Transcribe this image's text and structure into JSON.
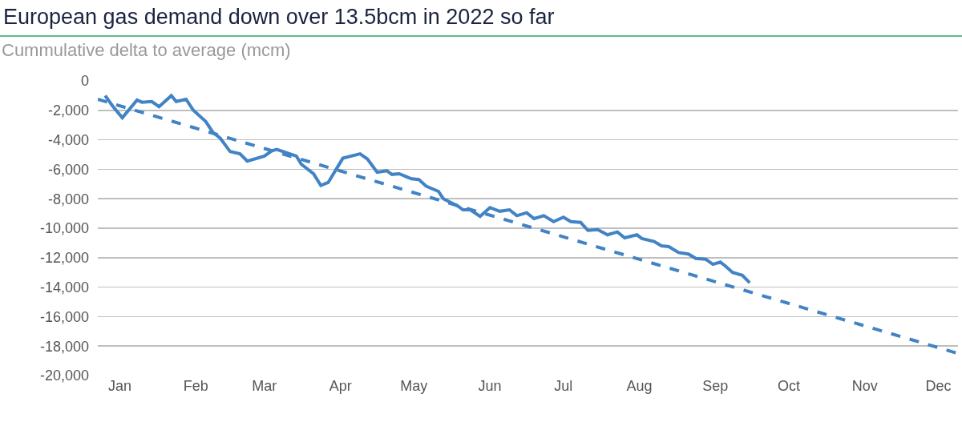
{
  "chart_data": {
    "type": "line",
    "title": "European gas demand down over 13.5bcm in 2022 so far",
    "subtitle": "Cummulative delta to average (mcm)",
    "xlim": [
      "2022-01-06",
      "2022-12-23"
    ],
    "xticks": [
      {
        "value": "2022-01-15",
        "label": "Jan"
      },
      {
        "value": "2022-02-15",
        "label": "Feb"
      },
      {
        "value": "2022-03-15",
        "label": "Mar"
      },
      {
        "value": "2022-04-15",
        "label": "Apr"
      },
      {
        "value": "2022-05-15",
        "label": "May"
      },
      {
        "value": "2022-06-15",
        "label": "Jun"
      },
      {
        "value": "2022-07-15",
        "label": "Jul"
      },
      {
        "value": "2022-08-15",
        "label": "Aug"
      },
      {
        "value": "2022-09-15",
        "label": "Sep"
      },
      {
        "value": "2022-10-15",
        "label": "Oct"
      },
      {
        "value": "2022-11-15",
        "label": "Nov"
      },
      {
        "value": "2022-12-15",
        "label": "Dec"
      }
    ],
    "ylim": [
      -20000,
      0
    ],
    "yticks": [
      0,
      {
        "value": -2000,
        "label": "-2,000"
      },
      {
        "value": -4000,
        "label": "-4,000"
      },
      {
        "value": -6000,
        "label": "-6,000"
      },
      {
        "value": -8000,
        "label": "-8,000"
      },
      {
        "value": -10000,
        "label": "-10,000"
      },
      {
        "value": -12000,
        "label": "-12,000"
      },
      {
        "value": -14000,
        "label": "-14,000"
      },
      {
        "value": -16000,
        "label": "-16,000"
      },
      {
        "value": -18000,
        "label": "-18,000"
      },
      {
        "value": -20000,
        "label": "-20,000"
      }
    ],
    "grid": "y",
    "marker": "none",
    "series": [
      {
        "color": "#4183c4",
        "line_style": "solid",
        "x": [
          "2022-01-09",
          "2022-01-12",
          "2022-01-16",
          "2022-01-22",
          "2022-01-24",
          "2022-01-28",
          "2022-01-31",
          "2022-02-05",
          "2022-02-07",
          "2022-02-11",
          "2022-02-14",
          "2022-02-19",
          "2022-02-22",
          "2022-02-25",
          "2022-03-01",
          "2022-03-05",
          "2022-03-08",
          "2022-03-15",
          "2022-03-18",
          "2022-03-20",
          "2022-03-28",
          "2022-03-30",
          "2022-04-04",
          "2022-04-07",
          "2022-04-10",
          "2022-04-16",
          "2022-04-23",
          "2022-04-26",
          "2022-04-30",
          "2022-05-04",
          "2022-05-06",
          "2022-05-09",
          "2022-05-14",
          "2022-05-17",
          "2022-05-20",
          "2022-05-25",
          "2022-05-27",
          "2022-06-02",
          "2022-06-04",
          "2022-06-07",
          "2022-06-11",
          "2022-06-15",
          "2022-06-19",
          "2022-06-23",
          "2022-06-26",
          "2022-06-30",
          "2022-07-03",
          "2022-07-07",
          "2022-07-11",
          "2022-07-15",
          "2022-07-18",
          "2022-07-22",
          "2022-07-25",
          "2022-07-29",
          "2022-08-02",
          "2022-08-06",
          "2022-08-09",
          "2022-08-14",
          "2022-08-16",
          "2022-08-21",
          "2022-08-24",
          "2022-08-27",
          "2022-08-31",
          "2022-09-04",
          "2022-09-07",
          "2022-09-11",
          "2022-09-14",
          "2022-09-17",
          "2022-09-19",
          "2022-09-22",
          "2022-09-26",
          "2022-09-29"
        ],
        "values": [
          -1000,
          -1700,
          -2500,
          -1300,
          -1450,
          -1400,
          -1750,
          -1000,
          -1400,
          -1250,
          -2000,
          -2750,
          -3500,
          -3900,
          -4800,
          -4950,
          -5450,
          -5100,
          -4750,
          -4650,
          -5100,
          -5650,
          -6300,
          -7100,
          -6900,
          -5250,
          -4950,
          -5300,
          -6200,
          -6100,
          -6350,
          -6300,
          -6650,
          -6700,
          -7150,
          -7500,
          -8000,
          -8500,
          -8750,
          -8750,
          -9200,
          -8600,
          -8850,
          -8750,
          -9150,
          -8950,
          -9350,
          -9150,
          -9550,
          -9250,
          -9550,
          -9600,
          -10150,
          -10100,
          -10450,
          -10250,
          -10650,
          -10450,
          -10700,
          -10900,
          -11200,
          -11250,
          -11650,
          -11750,
          -12050,
          -12100,
          -12450,
          -12300,
          -12550,
          -13000,
          -13200,
          -13700
        ]
      },
      {
        "color": "#4183c4",
        "line_style": "dashed",
        "x": [
          "2022-01-06",
          "2022-12-23"
        ],
        "values": [
          -1250,
          -18500
        ]
      }
    ]
  }
}
